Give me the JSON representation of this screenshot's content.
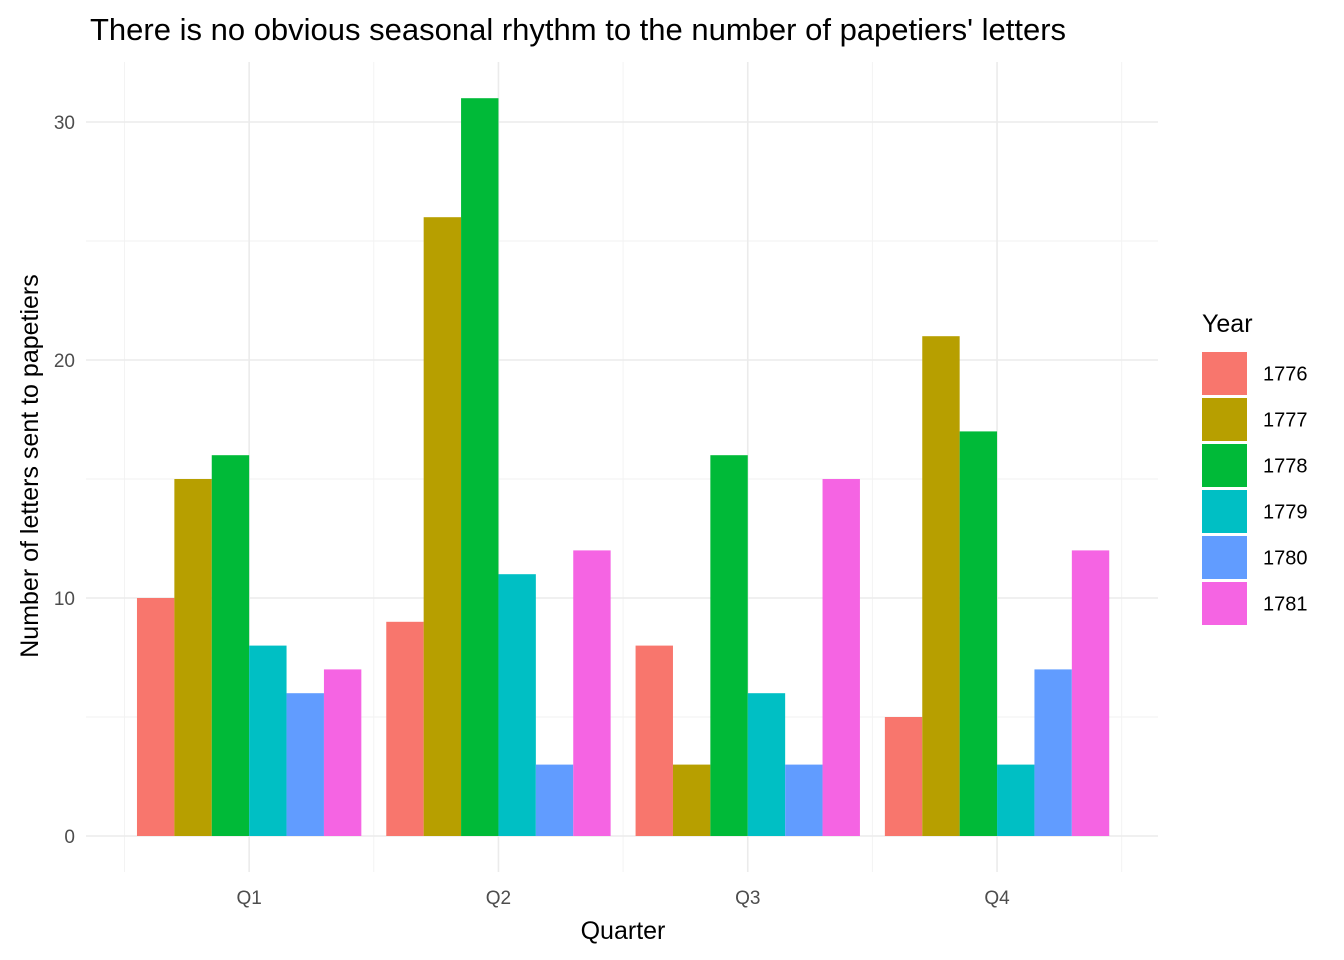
{
  "chart_data": {
    "type": "bar",
    "title": "There is no obvious seasonal rhythm to the number of papetiers' letters",
    "xlabel": "Quarter",
    "ylabel": "Number of letters sent to papetiers",
    "categories": [
      "Q1",
      "Q2",
      "Q3",
      "Q4"
    ],
    "ylim": [
      0,
      32
    ],
    "y_ticks": [
      0,
      10,
      20,
      30
    ],
    "grid": true,
    "legend_title": "Year",
    "legend_position": "right",
    "series": [
      {
        "name": "1776",
        "color": "#F8766D",
        "values": [
          10,
          9,
          8,
          5
        ]
      },
      {
        "name": "1777",
        "color": "#B79F00",
        "values": [
          15,
          26,
          3,
          21
        ]
      },
      {
        "name": "1778",
        "color": "#00BA38",
        "values": [
          16,
          31,
          16,
          17
        ]
      },
      {
        "name": "1779",
        "color": "#00BFC4",
        "values": [
          8,
          11,
          6,
          3
        ]
      },
      {
        "name": "1780",
        "color": "#619CFF",
        "values": [
          6,
          3,
          3,
          7
        ]
      },
      {
        "name": "1781",
        "color": "#F564E3",
        "values": [
          7,
          12,
          15,
          12
        ]
      }
    ]
  }
}
